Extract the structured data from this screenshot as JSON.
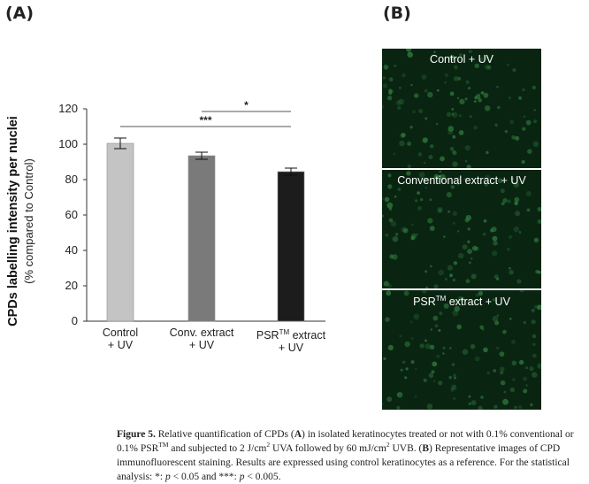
{
  "panel_a_label": "(A)",
  "panel_b_label": "(B)",
  "chart_data": {
    "type": "bar",
    "categories": [
      {
        "line1": "Control",
        "line2": "+ UV"
      },
      {
        "line1": "Conv. extract",
        "line2": "+ UV"
      },
      {
        "line1": "PSR",
        "sup": "TM",
        "line1_rest": " extract",
        "line2": "+ UV"
      }
    ],
    "values": [
      100.5,
      93.5,
      84.5
    ],
    "errors": [
      3,
      2,
      2
    ],
    "colors": [
      "#c4c4c4",
      "#7a7a7a",
      "#1c1c1c"
    ],
    "ylabel_bold": "CPDs labelling intensity per nuclei",
    "ylabel_sub": "(% compared to Control)",
    "ylim": [
      0,
      120
    ],
    "yticks": [
      0,
      20,
      40,
      60,
      80,
      100,
      120
    ],
    "significance": [
      {
        "from": 0,
        "to": 2,
        "label": "***"
      },
      {
        "from": 1,
        "to": 2,
        "label": "*"
      }
    ]
  },
  "images": [
    {
      "title": "Control + UV"
    },
    {
      "title": "Conventional extract + UV"
    },
    {
      "title_main": "PSR",
      "title_sup": "TM",
      "title_rest": " extract + UV"
    }
  ],
  "caption": {
    "fig": "Figure 5.",
    "t1": " Relative quantification of CPDs (",
    "a1": "A",
    "t2": ") in isolated keratinocytes treated or not with 0.1% conventional or 0.1% PSR",
    "tm1": "TM",
    "t3": " and subjected to 2 J/cm",
    "sq1": "2",
    "t4": " UVA followed by 60 mJ/cm",
    "sq2": "2",
    "t5": " UVB. (",
    "b1": "B",
    "t6": ") Representative images of CPD immunofluorescent staining. Results are expressed using control keratinocytes as a reference. For the statistical analysis: *: ",
    "p1": "p",
    "t7": " < 0.05 and ***: ",
    "p2": "p",
    "t8": " < 0.005."
  }
}
